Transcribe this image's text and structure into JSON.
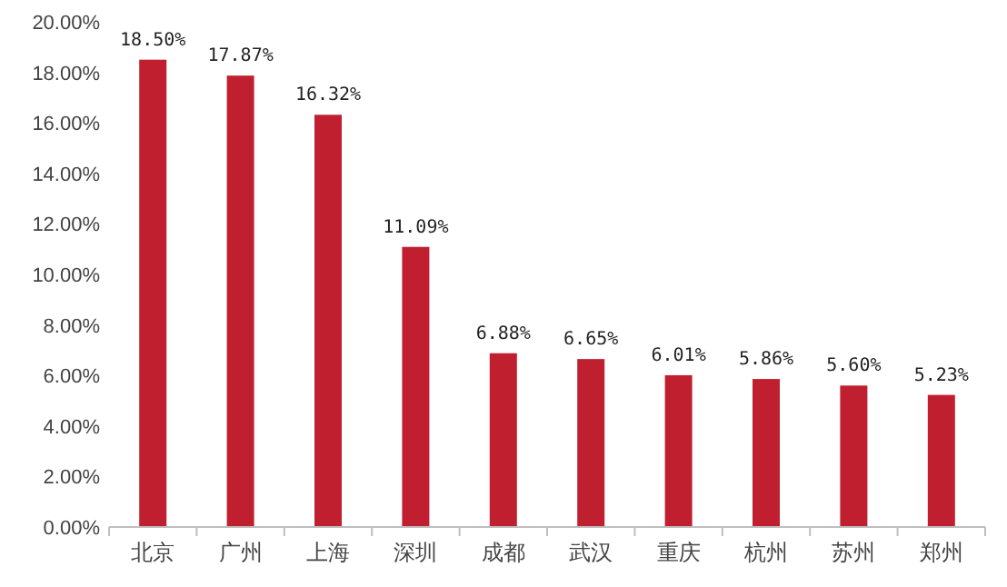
{
  "chart_data": {
    "type": "bar",
    "categories": [
      "北京",
      "广州",
      "上海",
      "深圳",
      "成都",
      "武汉",
      "重庆",
      "杭州",
      "苏州",
      "郑州"
    ],
    "values": [
      18.5,
      17.87,
      16.32,
      11.09,
      6.88,
      6.65,
      6.01,
      5.86,
      5.6,
      5.23
    ],
    "value_labels": [
      "18.50%",
      "17.87%",
      "16.32%",
      "11.09%",
      "6.88%",
      "6.65%",
      "6.01%",
      "5.86%",
      "5.60%",
      "5.23%"
    ],
    "color": "#c01f2f",
    "ylim": [
      0,
      20
    ],
    "yticks": [
      {
        "value": 0,
        "label": "0.00%"
      },
      {
        "value": 2,
        "label": "2.00%"
      },
      {
        "value": 4,
        "label": "4.00%"
      },
      {
        "value": 6,
        "label": "6.00%"
      },
      {
        "value": 8,
        "label": "8.00%"
      },
      {
        "value": 10,
        "label": "10.00%"
      },
      {
        "value": 12,
        "label": "12.00%"
      },
      {
        "value": 14,
        "label": "14.00%"
      },
      {
        "value": 16,
        "label": "16.00%"
      },
      {
        "value": 18,
        "label": "18.00%"
      },
      {
        "value": 20,
        "label": "20.00%"
      }
    ]
  }
}
